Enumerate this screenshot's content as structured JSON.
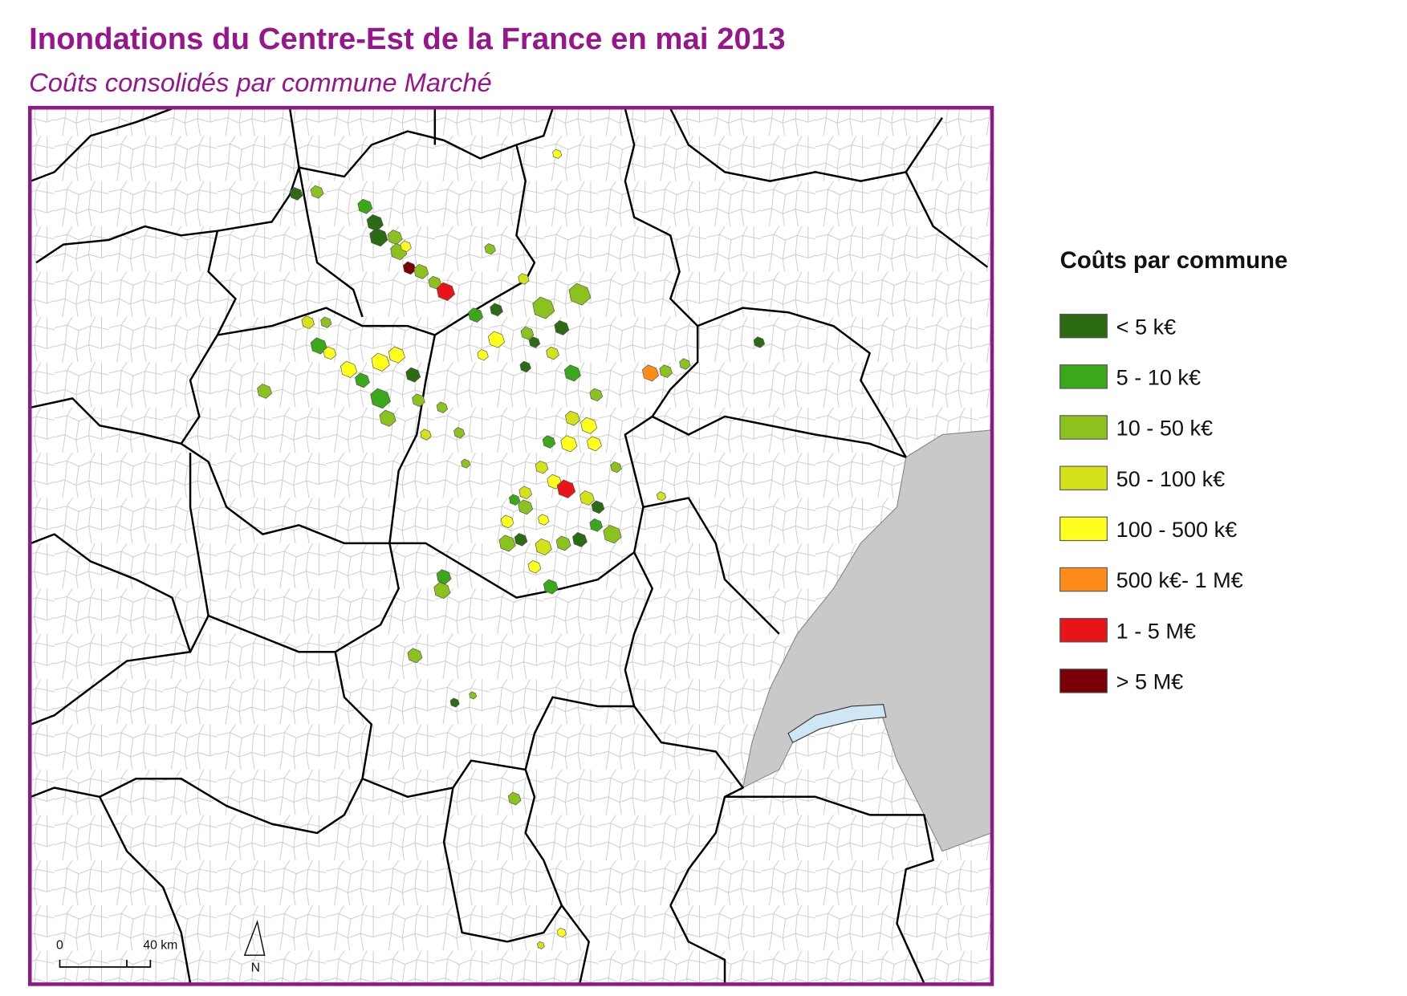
{
  "header": {
    "title": "Inondations du Centre-Est de la France en mai 2013",
    "subtitle": "Coûts consolidés par commune Marché"
  },
  "legend": {
    "title": "Coûts par commune",
    "items": [
      {
        "label": "< 5 k€",
        "color": "#2d6a14"
      },
      {
        "label": "5 - 10 k€",
        "color": "#3aa81a"
      },
      {
        "label": "10 - 50 k€",
        "color": "#8cc21e"
      },
      {
        "label": "50 - 100 k€",
        "color": "#d4e21a"
      },
      {
        "label": "100 - 500 k€",
        "color": "#ffff1e"
      },
      {
        "label": "500 k€- 1 M€",
        "color": "#ff8c1a"
      },
      {
        "label": "1 - 5 M€",
        "color": "#e8141a"
      },
      {
        "label": "> 5 M€",
        "color": "#7a0008"
      }
    ]
  },
  "scale_bar": {
    "labels": [
      "0",
      "40 km"
    ]
  },
  "north_arrow": {
    "label": "N"
  }
}
